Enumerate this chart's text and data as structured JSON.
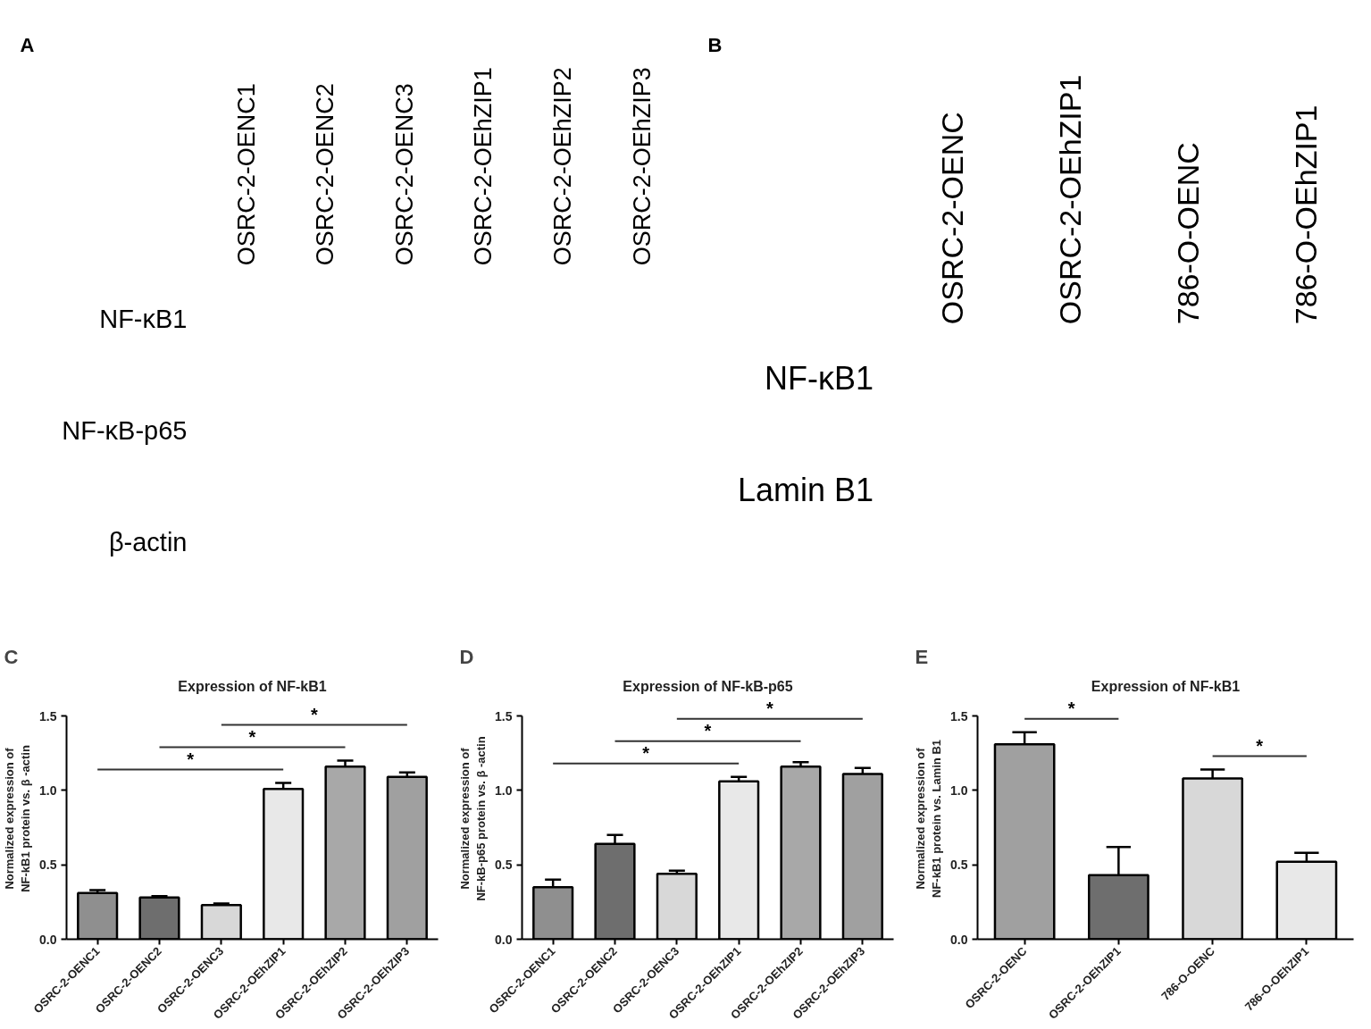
{
  "chart_data": [
    {
      "type": "other",
      "annotations": [
        "A"
      ],
      "categories": [
        "OSRC-2-OENC1",
        "OSRC-2-OENC2",
        "OSRC-2-OENC3",
        "OSRC-2-OEhZIP1",
        "OSRC-2-OEhZIP2",
        "OSRC-2-OEhZIP3"
      ],
      "y_categories": [
        "NF-κB1",
        "NF-κB-p65",
        "β-actin"
      ]
    },
    {
      "type": "other",
      "annotations": [
        "B"
      ],
      "categories": [
        "OSRC-2-OENC",
        "OSRC-2-OEhZIP1",
        "786-O-OENC",
        "786-O-OEhZIP1"
      ],
      "y_categories": [
        "NF-κB1",
        "Lamin B1"
      ]
    },
    {
      "type": "bar",
      "annotations": [
        "C",
        "*",
        "*",
        "*"
      ],
      "title": "Expression of NF-kB1",
      "ylabel": "Normalized expression of NF-kB1 protein vs. β -actin",
      "categories": [
        "OSRC-2-OENC1",
        "OSRC-2-OENC2",
        "OSRC-2-OENC3",
        "OSRC-2-OEhZIP1",
        "OSRC-2-OEhZIP2",
        "OSRC-2-OEhZIP3"
      ],
      "values": [
        0.31,
        0.28,
        0.23,
        1.01,
        1.16,
        1.09
      ],
      "errors": [
        0.02,
        0.01,
        0.01,
        0.04,
        0.04,
        0.03
      ],
      "colors": [
        "#8f8f8f",
        "#6e6e6e",
        "#d8d8d8",
        "#e8e8e8",
        "#a8a8a8",
        "#a0a0a0"
      ],
      "ylim": [
        0,
        1.5
      ],
      "yticks": [
        {
          "value": 0,
          "label": "0.0"
        },
        {
          "value": 0.5,
          "label": "0.5"
        },
        {
          "value": 1,
          "label": "1.0"
        },
        {
          "value": 1.5,
          "label": "1.5"
        }
      ]
    },
    {
      "type": "bar",
      "annotations": [
        "D",
        "*",
        "*",
        "*"
      ],
      "title": "Expression of NF-kB-p65",
      "ylabel": "Normalized expression of NF-kB-p65 protein vs. β -actin",
      "categories": [
        "OSRC-2-OENC1",
        "OSRC-2-OENC2",
        "OSRC-2-OENC3",
        "OSRC-2-OEhZIP1",
        "OSRC-2-OEhZIP2",
        "OSRC-2-OEhZIP3"
      ],
      "values": [
        0.35,
        0.64,
        0.44,
        1.06,
        1.16,
        1.11
      ],
      "errors": [
        0.05,
        0.06,
        0.02,
        0.03,
        0.03,
        0.04
      ],
      "colors": [
        "#8f8f8f",
        "#6e6e6e",
        "#d8d8d8",
        "#e8e8e8",
        "#a8a8a8",
        "#a0a0a0"
      ],
      "ylim": [
        0,
        1.5
      ],
      "yticks": [
        {
          "value": 0,
          "label": "0.0"
        },
        {
          "value": 0.5,
          "label": "0.5"
        },
        {
          "value": 1,
          "label": "1.0"
        },
        {
          "value": 1.5,
          "label": "1.5"
        }
      ]
    },
    {
      "type": "bar",
      "annotations": [
        "E",
        "*",
        "*"
      ],
      "title": "Expression of NF-kB1",
      "ylabel": "Normalized expression of NF-kB1 protein vs. Lamin B1",
      "categories": [
        "OSRC-2-OENC",
        "OSRC-2-OEhZIP1",
        "786-O-OENC",
        "786-O-OEhZIP1"
      ],
      "values": [
        1.31,
        0.43,
        1.08,
        0.52
      ],
      "errors": [
        0.08,
        0.19,
        0.06,
        0.06
      ],
      "colors": [
        "#a0a0a0",
        "#6e6e6e",
        "#d8d8d8",
        "#e8e8e8"
      ],
      "ylim": [
        0,
        1.5
      ],
      "yticks": [
        {
          "value": 0,
          "label": "0.0"
        },
        {
          "value": 0.5,
          "label": "0.5"
        },
        {
          "value": 1,
          "label": "1.0"
        },
        {
          "value": 1.5,
          "label": "1.5"
        }
      ]
    }
  ]
}
